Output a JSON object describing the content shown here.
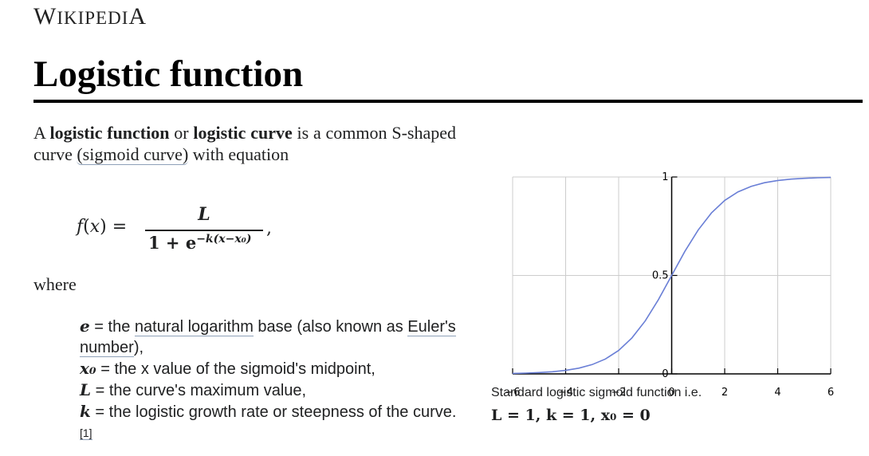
{
  "header": {
    "wordmark_first": "W",
    "wordmark_rest": "IKIPEDI",
    "wordmark_last": "A"
  },
  "article": {
    "title": "Logistic function",
    "intro_1": "A ",
    "term_1": "logistic function",
    "intro_2": " or ",
    "term_2": "logistic curve",
    "intro_3": " is a common S-shaped curve ",
    "link_sigmoid": "(sigmoid curve)",
    "intro_4": " with equation",
    "formula": {
      "lhs": "f(x) =",
      "numerator": "L",
      "denominator_base": "1 + e",
      "denominator_exp": "−k(x−x₀)",
      "trailing": ","
    },
    "where": "where",
    "definitions": [
      {
        "symbol": "e",
        "text_before": " = the ",
        "link": "natural logarithm",
        "text_after": " base (also known as ",
        "link2": "Euler's number",
        "text_end": "),"
      },
      {
        "symbol": "x₀",
        "text": " = the x value of the sigmoid's midpoint,"
      },
      {
        "symbol": "L",
        "text": " = the curve's maximum value,"
      },
      {
        "symbol": "k",
        "text": " = the logistic growth rate or steepness of the curve.",
        "ref": "[1]"
      }
    ]
  },
  "figure": {
    "caption": "Standard logistic sigmoid function i.e.",
    "caption_math": "L = 1, k = 1, x₀ = 0"
  },
  "chart_data": {
    "type": "line",
    "title": "",
    "xlabel": "",
    "ylabel": "",
    "xlim": [
      -6,
      6
    ],
    "ylim": [
      0,
      1
    ],
    "x_ticks": [
      -6,
      -4,
      -2,
      0,
      2,
      4,
      6
    ],
    "x_tick_labels": [
      "−6",
      "−4",
      "−2",
      "0",
      "2",
      "4",
      "6"
    ],
    "y_ticks": [
      0,
      0.5,
      1
    ],
    "y_tick_labels": [
      "0",
      "0.5",
      "1"
    ],
    "grid": true,
    "series": [
      {
        "color": "#6a7fd6",
        "x": [
          -6,
          -5.5,
          -5,
          -4.5,
          -4,
          -3.5,
          -3,
          -2.5,
          -2,
          -1.5,
          -1,
          -0.5,
          0,
          0.5,
          1,
          1.5,
          2,
          2.5,
          3,
          3.5,
          4,
          4.5,
          5,
          5.5,
          6
        ],
        "y": [
          0.0025,
          0.0041,
          0.0067,
          0.011,
          0.018,
          0.0293,
          0.0474,
          0.0759,
          0.1192,
          0.1824,
          0.2689,
          0.3775,
          0.5,
          0.6225,
          0.7311,
          0.8176,
          0.8808,
          0.9241,
          0.9526,
          0.9707,
          0.982,
          0.989,
          0.9933,
          0.9959,
          0.9975
        ]
      }
    ]
  }
}
